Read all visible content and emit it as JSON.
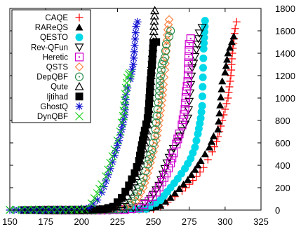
{
  "chart_data": {
    "type": "scatter",
    "title": "",
    "xlabel": "",
    "ylabel": "",
    "xlim": [
      150,
      325
    ],
    "ylim": [
      0,
      1800
    ],
    "x_ticks": [
      150,
      175,
      200,
      225,
      250,
      275,
      300,
      325
    ],
    "y_ticks": [
      0,
      200,
      400,
      600,
      800,
      1000,
      1200,
      1400,
      1600,
      1800
    ],
    "y_axis_side": "right",
    "grid": false,
    "legend_position": "top-left",
    "series": [
      {
        "name": "CAQE",
        "color": "#ff0000",
        "marker": "plus",
        "points": [
          [
            225,
            3
          ],
          [
            240,
            5
          ],
          [
            250,
            10
          ],
          [
            255,
            30
          ],
          [
            260,
            70
          ],
          [
            265,
            120
          ],
          [
            270,
            170
          ],
          [
            275,
            230
          ],
          [
            280,
            300
          ],
          [
            285,
            380
          ],
          [
            288,
            450
          ],
          [
            291,
            520
          ],
          [
            294,
            610
          ],
          [
            296,
            700
          ],
          [
            298,
            800
          ],
          [
            300,
            900
          ],
          [
            302,
            1000
          ],
          [
            304,
            1200
          ],
          [
            305,
            1400
          ],
          [
            307,
            1620
          ],
          [
            308,
            1680
          ]
        ]
      },
      {
        "name": "RAReQS",
        "color": "#000000",
        "marker": "triangle-filled",
        "points": [
          [
            228,
            3
          ],
          [
            245,
            8
          ],
          [
            255,
            40
          ],
          [
            262,
            110
          ],
          [
            268,
            190
          ],
          [
            274,
            270
          ],
          [
            279,
            360
          ],
          [
            283,
            440
          ],
          [
            286,
            500
          ],
          [
            289,
            560
          ],
          [
            292,
            660
          ],
          [
            295,
            720
          ],
          [
            298,
            1150
          ],
          [
            300,
            1230
          ],
          [
            302,
            1400
          ],
          [
            306,
            1550
          ]
        ]
      },
      {
        "name": "QESTO",
        "color": "#00d8e8",
        "marker": "circle-filled",
        "points": [
          [
            228,
            3
          ],
          [
            245,
            10
          ],
          [
            255,
            90
          ],
          [
            262,
            200
          ],
          [
            267,
            280
          ],
          [
            272,
            370
          ],
          [
            276,
            460
          ],
          [
            279,
            560
          ],
          [
            281,
            680
          ],
          [
            283,
            820
          ],
          [
            284,
            930
          ],
          [
            285,
            1440
          ],
          [
            286,
            1690
          ]
        ]
      },
      {
        "name": "Rev-QFun",
        "color": "#000000",
        "marker": "triangle-down",
        "points": [
          [
            220,
            2
          ],
          [
            232,
            5
          ],
          [
            240,
            30
          ],
          [
            248,
            100
          ],
          [
            254,
            220
          ],
          [
            258,
            370
          ],
          [
            261,
            470
          ],
          [
            264,
            550
          ],
          [
            267,
            610
          ],
          [
            270,
            710
          ],
          [
            274,
            820
          ],
          [
            277,
            1270
          ],
          [
            278,
            1310
          ],
          [
            280,
            1430
          ],
          [
            282,
            1580
          ],
          [
            284,
            1630
          ]
        ]
      },
      {
        "name": "Heretic",
        "color": "#d000d0",
        "marker": "square-open",
        "points": [
          [
            215,
            2
          ],
          [
            230,
            5
          ],
          [
            240,
            20
          ],
          [
            247,
            80
          ],
          [
            252,
            160
          ],
          [
            256,
            250
          ],
          [
            259,
            330
          ],
          [
            262,
            420
          ],
          [
            264,
            510
          ],
          [
            266,
            590
          ],
          [
            268,
            680
          ],
          [
            270,
            760
          ],
          [
            272,
            900
          ],
          [
            273,
            1060
          ],
          [
            274,
            1150
          ],
          [
            275,
            1480
          ],
          [
            276,
            1530
          ]
        ]
      },
      {
        "name": "QSTS",
        "color": "#ff8040",
        "marker": "diamond-open",
        "points": [
          [
            215,
            3
          ],
          [
            230,
            20
          ],
          [
            238,
            80
          ],
          [
            243,
            200
          ],
          [
            246,
            330
          ],
          [
            249,
            470
          ],
          [
            252,
            620
          ],
          [
            254,
            800
          ],
          [
            256,
            980
          ],
          [
            257,
            1120
          ],
          [
            258,
            1250
          ],
          [
            259,
            1420
          ],
          [
            260,
            1610
          ],
          [
            261,
            1700
          ]
        ]
      },
      {
        "name": "DepQBF",
        "color": "#2f8f4f",
        "marker": "circle-open",
        "points": [
          [
            210,
            2
          ],
          [
            225,
            8
          ],
          [
            233,
            40
          ],
          [
            239,
            160
          ],
          [
            243,
            290
          ],
          [
            246,
            410
          ],
          [
            249,
            540
          ],
          [
            251,
            660
          ],
          [
            252,
            780
          ],
          [
            253,
            900
          ],
          [
            254,
            1020
          ],
          [
            255,
            1200
          ],
          [
            256,
            1300
          ],
          [
            257,
            1330
          ],
          [
            258,
            1360
          ],
          [
            259,
            1480
          ],
          [
            261,
            1550
          ],
          [
            262,
            1600
          ]
        ]
      },
      {
        "name": "Qute",
        "color": "#000000",
        "marker": "triangle-open",
        "points": [
          [
            205,
            2
          ],
          [
            220,
            10
          ],
          [
            228,
            50
          ],
          [
            234,
            160
          ],
          [
            238,
            300
          ],
          [
            241,
            440
          ],
          [
            244,
            600
          ],
          [
            246,
            760
          ],
          [
            247,
            900
          ],
          [
            248,
            1100
          ],
          [
            249,
            1350
          ],
          [
            250,
            1500
          ],
          [
            251,
            1780
          ]
        ]
      },
      {
        "name": "Ijtihad",
        "color": "#000000",
        "marker": "square-filled",
        "points": [
          [
            200,
            2
          ],
          [
            215,
            8
          ],
          [
            222,
            30
          ],
          [
            228,
            110
          ],
          [
            233,
            220
          ],
          [
            237,
            330
          ],
          [
            240,
            440
          ],
          [
            242,
            580
          ],
          [
            244,
            710
          ],
          [
            246,
            820
          ],
          [
            247,
            950
          ],
          [
            248,
            1160
          ],
          [
            249,
            1290
          ],
          [
            250,
            1490
          ],
          [
            252,
            1500
          ]
        ]
      },
      {
        "name": "GhostQ",
        "color": "#1010d0",
        "marker": "asterisk",
        "points": [
          [
            180,
            2
          ],
          [
            195,
            5
          ],
          [
            205,
            20
          ],
          [
            211,
            90
          ],
          [
            214,
            160
          ],
          [
            217,
            260
          ],
          [
            220,
            370
          ],
          [
            223,
            490
          ],
          [
            226,
            620
          ],
          [
            228,
            720
          ],
          [
            230,
            850
          ],
          [
            231,
            1030
          ],
          [
            232,
            1090
          ],
          [
            234,
            1170
          ],
          [
            236,
            1300
          ],
          [
            238,
            1640
          ],
          [
            239,
            1680
          ]
        ]
      },
      {
        "name": "DynQBF",
        "color": "#20d020",
        "marker": "cross",
        "points": [
          [
            150,
            3
          ],
          [
            175,
            4
          ],
          [
            195,
            4
          ],
          [
            202,
            10
          ],
          [
            207,
            60
          ],
          [
            211,
            150
          ],
          [
            214,
            230
          ],
          [
            217,
            300
          ],
          [
            220,
            420
          ],
          [
            223,
            540
          ],
          [
            225,
            620
          ],
          [
            227,
            700
          ],
          [
            228,
            780
          ],
          [
            229,
            840
          ],
          [
            230,
            980
          ],
          [
            231,
            1090
          ],
          [
            232,
            1180
          ],
          [
            233,
            1210
          ],
          [
            234,
            1220
          ]
        ]
      }
    ]
  }
}
